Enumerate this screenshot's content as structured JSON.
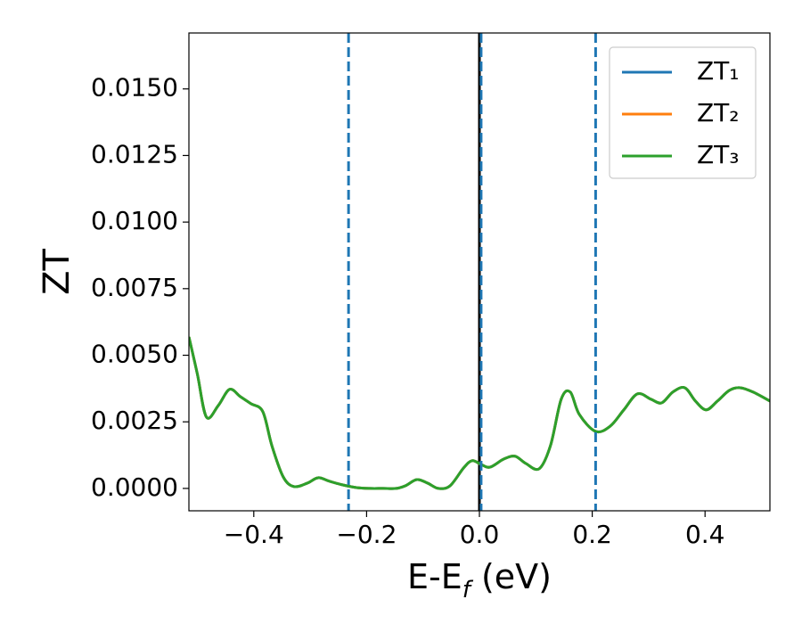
{
  "chart_data": {
    "type": "line",
    "xlabel": [
      "E-E",
      "f",
      " (eV)"
    ],
    "ylabel": "ZT",
    "xlim": [
      -0.515,
      0.515
    ],
    "ylim": [
      -0.00084,
      0.0171
    ],
    "xticks": [
      {
        "value": -0.4,
        "label": "−0.4"
      },
      {
        "value": -0.2,
        "label": "−0.2"
      },
      {
        "value": 0.0,
        "label": "0.0"
      },
      {
        "value": 0.2,
        "label": "0.2"
      },
      {
        "value": 0.4,
        "label": "0.4"
      }
    ],
    "yticks": [
      {
        "value": 0.0,
        "label": "0.0000"
      },
      {
        "value": 0.0025,
        "label": "0.0025"
      },
      {
        "value": 0.005,
        "label": "0.0050"
      },
      {
        "value": 0.0075,
        "label": "0.0075"
      },
      {
        "value": 0.01,
        "label": "0.0100"
      },
      {
        "value": 0.0125,
        "label": "0.0125"
      },
      {
        "value": 0.015,
        "label": "0.0150"
      }
    ],
    "grid": false,
    "legend": "upper right",
    "vlines": [
      {
        "x": 0.0,
        "color": "#000000",
        "style": "solid"
      },
      {
        "x": -0.232,
        "color": "#1f77b4",
        "style": "dashed"
      },
      {
        "x": 0.003,
        "color": "#1f77b4",
        "style": "dashed"
      },
      {
        "x": 0.206,
        "color": "#1f77b4",
        "style": "dashed"
      }
    ],
    "x": [
      -0.515,
      -0.5,
      -0.484,
      -0.463,
      -0.443,
      -0.424,
      -0.405,
      -0.384,
      -0.368,
      -0.348,
      -0.329,
      -0.305,
      -0.286,
      -0.266,
      -0.242,
      -0.218,
      -0.194,
      -0.171,
      -0.147,
      -0.131,
      -0.111,
      -0.092,
      -0.073,
      -0.052,
      -0.028,
      -0.013,
      0.003,
      0.019,
      0.043,
      0.063,
      0.082,
      0.106,
      0.126,
      0.145,
      0.161,
      0.177,
      0.206,
      0.232,
      0.256,
      0.28,
      0.304,
      0.323,
      0.343,
      0.364,
      0.383,
      0.402,
      0.422,
      0.443,
      0.462,
      0.485,
      0.515
    ],
    "series": [
      {
        "name": "ZT₁",
        "color": "#1f77b4",
        "values": [
          0.00569,
          0.00429,
          0.00268,
          0.00311,
          0.00372,
          0.00345,
          0.00318,
          0.00288,
          0.00161,
          0.00044,
          7e-05,
          0.0002,
          0.0004,
          0.00027,
          0.00013,
          3e-05,
          0,
          0,
          0,
          0.0001,
          0.00033,
          0.0002,
          0,
          0.0001,
          0.00077,
          0.00104,
          0.0009,
          0.0008,
          0.0011,
          0.00121,
          0.00094,
          0.00074,
          0.00161,
          0.00335,
          0.00362,
          0.00278,
          0.00214,
          0.00234,
          0.00295,
          0.00355,
          0.00335,
          0.00321,
          0.00362,
          0.00378,
          0.00328,
          0.00295,
          0.00328,
          0.00368,
          0.00378,
          0.00362,
          0.00328
        ]
      },
      {
        "name": "ZT₂",
        "color": "#ff7f0e",
        "values": [
          0.00569,
          0.00429,
          0.00268,
          0.00311,
          0.00372,
          0.00345,
          0.00318,
          0.00288,
          0.00161,
          0.00044,
          7e-05,
          0.0002,
          0.0004,
          0.00027,
          0.00013,
          3e-05,
          0,
          0,
          0,
          0.0001,
          0.00033,
          0.0002,
          0,
          0.0001,
          0.00077,
          0.00104,
          0.0009,
          0.0008,
          0.0011,
          0.00121,
          0.00094,
          0.00074,
          0.00161,
          0.00335,
          0.00362,
          0.00278,
          0.00214,
          0.00234,
          0.00295,
          0.00355,
          0.00335,
          0.00321,
          0.00362,
          0.00378,
          0.00328,
          0.00295,
          0.00328,
          0.00368,
          0.00378,
          0.00362,
          0.00328
        ]
      },
      {
        "name": "ZT₃",
        "color": "#2ca02c",
        "values": [
          0.00569,
          0.00429,
          0.00268,
          0.00311,
          0.00372,
          0.00345,
          0.00318,
          0.00288,
          0.00161,
          0.00044,
          7e-05,
          0.0002,
          0.0004,
          0.00027,
          0.00013,
          3e-05,
          0,
          0,
          0,
          0.0001,
          0.00033,
          0.0002,
          0,
          0.0001,
          0.00077,
          0.00104,
          0.0009,
          0.0008,
          0.0011,
          0.00121,
          0.00094,
          0.00074,
          0.00161,
          0.00335,
          0.00362,
          0.00278,
          0.00214,
          0.00234,
          0.00295,
          0.00355,
          0.00335,
          0.00321,
          0.00362,
          0.00378,
          0.00328,
          0.00295,
          0.00328,
          0.00368,
          0.00378,
          0.00362,
          0.00328
        ]
      }
    ]
  }
}
